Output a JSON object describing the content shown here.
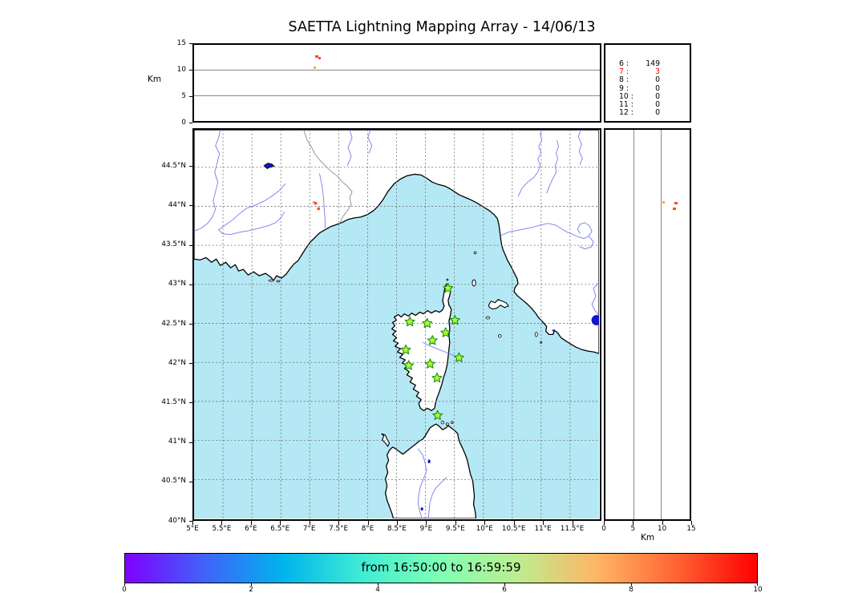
{
  "title": "SAETTA Lightning Mapping Array - 14/06/13",
  "altitude_panel": {
    "ylabel": "Km",
    "yticks": [
      {
        "label": "0",
        "value": 0
      },
      {
        "label": "5",
        "value": 5
      },
      {
        "label": "10",
        "value": 10
      },
      {
        "label": "15",
        "value": 15
      }
    ],
    "gridlines": [
      5,
      10
    ]
  },
  "stats_panel": {
    "rows": [
      {
        "key": "6",
        "value": "149",
        "color": "#000000"
      },
      {
        "key": "7",
        "value": "3",
        "color": "#ff0000"
      },
      {
        "key": "8",
        "value": "0",
        "color": "#000000"
      },
      {
        "key": "9",
        "value": "0",
        "color": "#000000"
      },
      {
        "key": "10",
        "value": "0",
        "color": "#000000"
      },
      {
        "key": "11",
        "value": "0",
        "color": "#000000"
      },
      {
        "key": "12",
        "value": "0",
        "color": "#000000"
      }
    ]
  },
  "map": {
    "lat_ticks": [
      {
        "label": "44.5°N",
        "value": 44.5
      },
      {
        "label": "44°N",
        "value": 44
      },
      {
        "label": "43.5°N",
        "value": 43.5
      },
      {
        "label": "43°N",
        "value": 43
      },
      {
        "label": "42.5°N",
        "value": 42.5
      },
      {
        "label": "42°N",
        "value": 42
      },
      {
        "label": "41.5°N",
        "value": 41.5
      },
      {
        "label": "41°N",
        "value": 41
      },
      {
        "label": "40.5°N",
        "value": 40.5
      },
      {
        "label": "40°N",
        "value": 40
      }
    ],
    "lon_ticks": [
      {
        "label": "5°E",
        "value": 5
      },
      {
        "label": "5.5°E",
        "value": 5.5
      },
      {
        "label": "6°E",
        "value": 6
      },
      {
        "label": "6.5°E",
        "value": 6.5
      },
      {
        "label": "7°E",
        "value": 7
      },
      {
        "label": "7.5°E",
        "value": 7.5
      },
      {
        "label": "8°E",
        "value": 8
      },
      {
        "label": "8.5°E",
        "value": 8.5
      },
      {
        "label": "9°E",
        "value": 9
      },
      {
        "label": "9.5°E",
        "value": 9.5
      },
      {
        "label": "10°E",
        "value": 10
      },
      {
        "label": "10.5°E",
        "value": 10.5
      },
      {
        "label": "11°E",
        "value": 11
      },
      {
        "label": "11.5°E",
        "value": 11.5
      }
    ]
  },
  "right_panel": {
    "xlabel": "Km",
    "xticks": [
      {
        "label": "0",
        "value": 0
      },
      {
        "label": "5",
        "value": 5
      },
      {
        "label": "10",
        "value": 10
      },
      {
        "label": "15",
        "value": 15
      }
    ],
    "gridlines": [
      5,
      10
    ]
  },
  "colorbar": {
    "label": "from 16:50:00 to 16:59:59",
    "ticks": [
      {
        "label": "0",
        "value": 0
      },
      {
        "label": "2",
        "value": 2
      },
      {
        "label": "4",
        "value": 4
      },
      {
        "label": "6",
        "value": 6
      },
      {
        "label": "8",
        "value": 8
      },
      {
        "label": "10",
        "value": 10
      }
    ],
    "stops": [
      "#8000ff",
      "#4062fa",
      "#00b4ec",
      "#40ecd4",
      "#80ffb4",
      "#bfec8e",
      "#ffb462",
      "#ff6232",
      "#ff0000"
    ]
  },
  "colors": {
    "sea": "#b5e8f5",
    "land": "#ffffff",
    "coastline": "#000000",
    "river": "#7878f0",
    "country_border": "#8a8a8a",
    "lake": "#1414cc",
    "gridline": "#6e6e6e",
    "station_fill": "#adff2f",
    "station_edge": "#1a8c1a"
  },
  "chart_data": {
    "type": "scatter",
    "title": "SAETTA Lightning Mapping Array - 14/06/13",
    "time_window_label": "from 16:50:00 to 16:59:59",
    "map_extent": {
      "lon_min": 5,
      "lon_max": 12.0,
      "lat_min": 40,
      "lat_max": 44.98
    },
    "altitude_range_km": [
      0,
      15
    ],
    "colorbar_range": [
      0,
      10
    ],
    "stations_lma": [
      {
        "lon": 9.39,
        "lat": 42.95
      },
      {
        "lon": 8.73,
        "lat": 42.52
      },
      {
        "lon": 9.03,
        "lat": 42.5
      },
      {
        "lon": 9.51,
        "lat": 42.54
      },
      {
        "lon": 9.35,
        "lat": 42.38
      },
      {
        "lon": 9.12,
        "lat": 42.28
      },
      {
        "lon": 8.66,
        "lat": 42.16
      },
      {
        "lon": 9.58,
        "lat": 42.06
      },
      {
        "lon": 9.08,
        "lat": 41.98
      },
      {
        "lon": 8.71,
        "lat": 41.96
      },
      {
        "lon": 9.2,
        "lat": 41.8
      },
      {
        "lon": 9.21,
        "lat": 41.32
      }
    ],
    "sources": [
      {
        "lon": 7.07,
        "lat": 44.05,
        "alt_km": 10.4,
        "color": "#ffaa3c"
      },
      {
        "lon": 7.1,
        "lat": 44.04,
        "alt_km": 12.7,
        "color": "#ff4830"
      },
      {
        "lon": 7.15,
        "lat": 43.97,
        "alt_km": 12.4,
        "color": "#ff4830"
      }
    ],
    "sources_per_station_count": {
      "6": 149,
      "7": 3,
      "8": 0,
      "9": 0,
      "10": 0,
      "11": 0,
      "12": 0
    }
  }
}
